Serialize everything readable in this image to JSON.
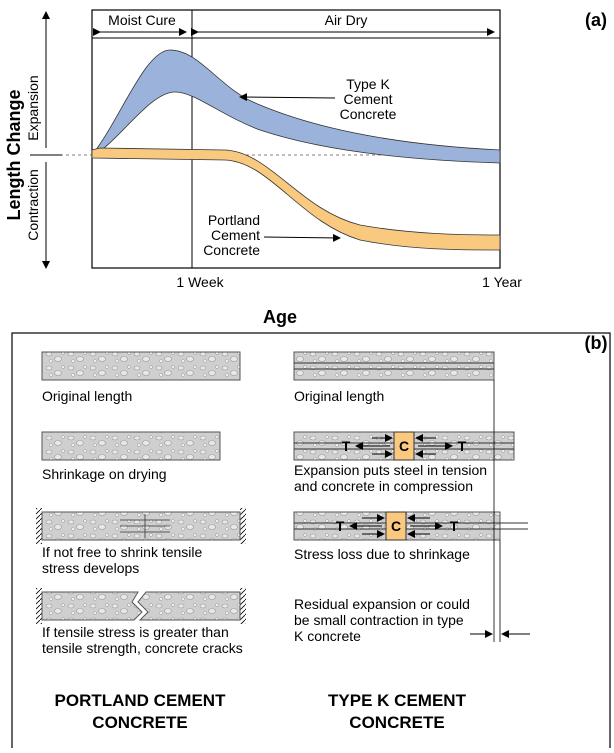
{
  "panel_a": {
    "label": "(a)",
    "phases": [
      "Moist Cure",
      "Air Dry"
    ],
    "y_title": "Length Change",
    "y_up": "Expansion",
    "y_down": "Contraction",
    "x_labels": [
      "1 Week",
      "1 Year"
    ],
    "x_title": "Age",
    "curves": [
      {
        "label": [
          "Type K",
          "Cement",
          "Concrete"
        ]
      },
      {
        "label": [
          "Portland",
          "Cement",
          "Concrete"
        ]
      }
    ]
  },
  "panel_b": {
    "label": "(b)",
    "markers": {
      "tension": "T",
      "compression": "C"
    },
    "left": {
      "captions": [
        [
          "Original length"
        ],
        [
          "Shrinkage on drying"
        ],
        [
          "If not free to shrink tensile",
          "stress develops"
        ],
        [
          "If tensile stress is greater than",
          "tensile strength, concrete cracks"
        ]
      ],
      "title": [
        "PORTLAND CEMENT",
        "CONCRETE"
      ]
    },
    "right": {
      "captions": [
        [
          "Original length"
        ],
        [
          "Expansion puts steel in tension",
          "and concrete in compression"
        ],
        [
          "Stress loss due to shrinkage"
        ],
        [
          "Residual expansion or could",
          "be small contraction in type",
          "K concrete"
        ]
      ],
      "title": [
        "TYPE K CEMENT",
        "CONCRETE"
      ]
    }
  }
}
